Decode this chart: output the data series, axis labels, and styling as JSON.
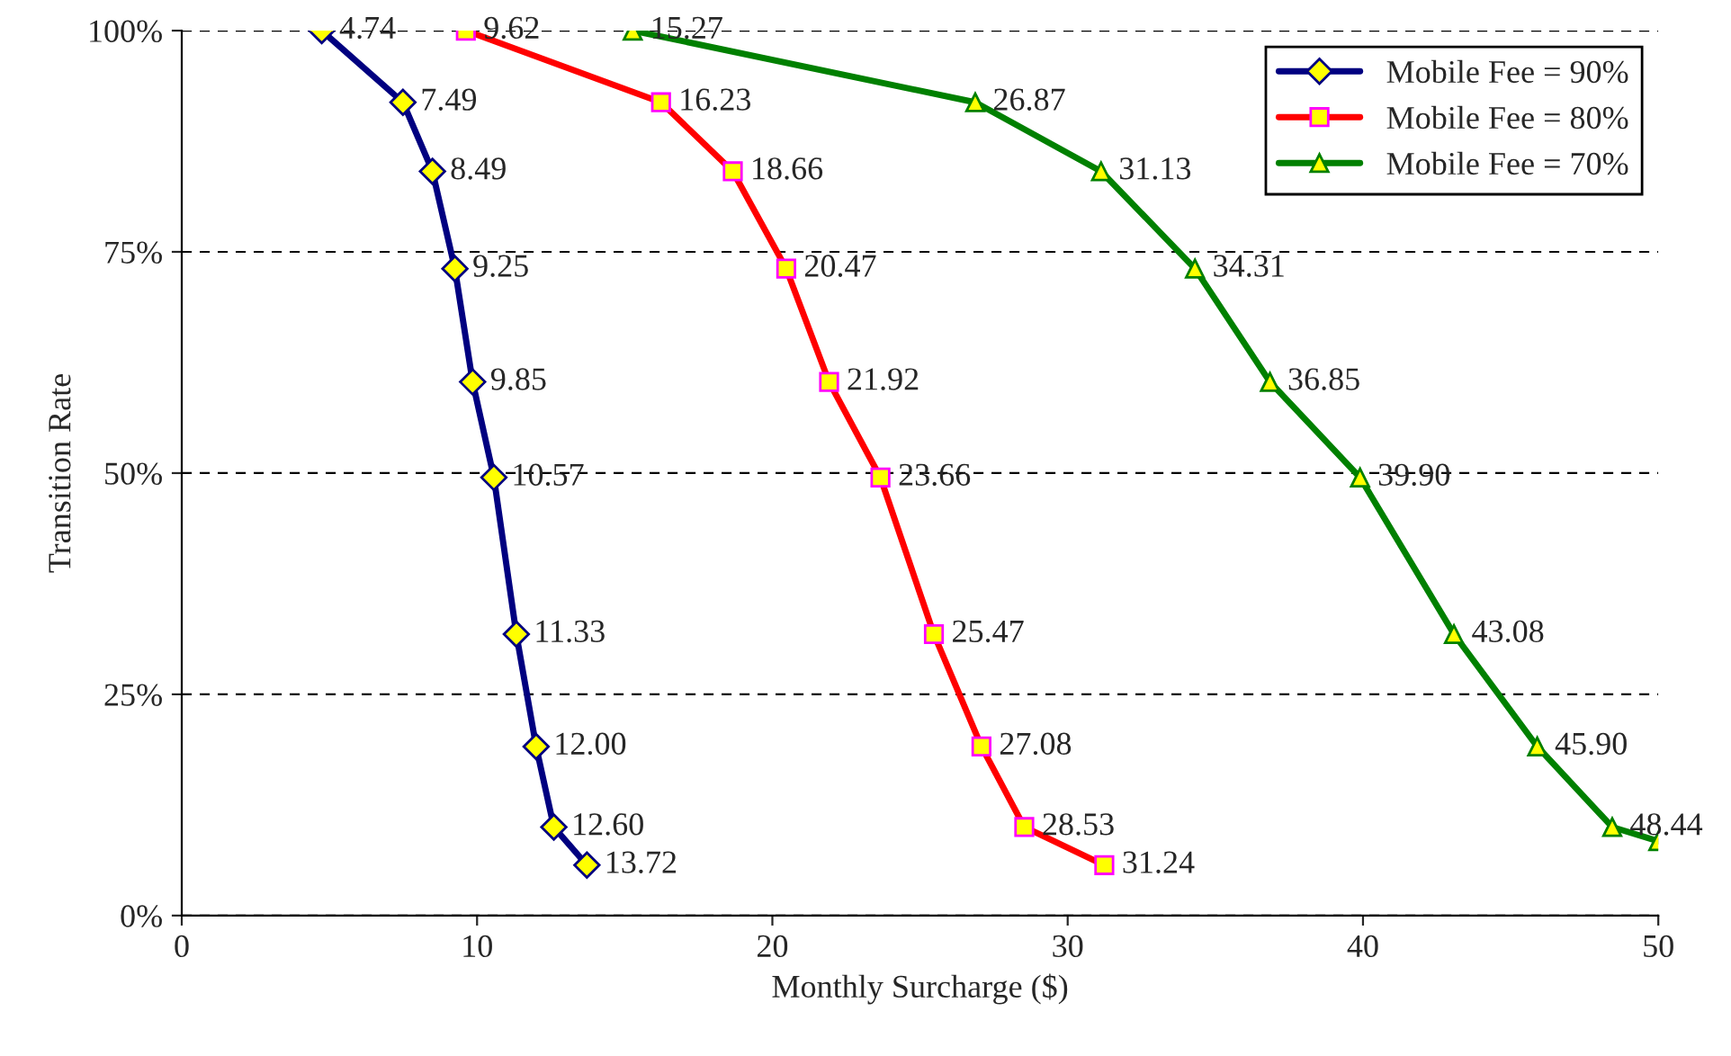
{
  "chart_data": {
    "type": "line",
    "xlabel": "Monthly Surcharge ($)",
    "ylabel": "Transition Rate",
    "xlim": [
      0,
      50
    ],
    "xticks": [
      0,
      10,
      20,
      30,
      40,
      50
    ],
    "ylim": [
      0,
      100
    ],
    "yticks": [
      {
        "value": 0,
        "label": "0%"
      },
      {
        "value": 25,
        "label": "25%"
      },
      {
        "value": 50,
        "label": "50%"
      },
      {
        "value": 75,
        "label": "75%"
      },
      {
        "value": 100,
        "label": "100%"
      }
    ],
    "grid": "y",
    "legend": "top right",
    "series": [
      {
        "name": "Mobile Fee = 90%",
        "color": "#000080",
        "marker": "diamond",
        "x": [
          4.74,
          7.49,
          8.49,
          9.25,
          9.85,
          10.57,
          11.33,
          12.0,
          12.6,
          13.72
        ],
        "values": [
          100,
          91.9,
          84.1,
          73.1,
          60.3,
          49.5,
          31.8,
          19.1,
          10.0,
          5.7
        ]
      },
      {
        "name": "Mobile Fee = 80%",
        "color": "#ff0000",
        "marker": "square",
        "x": [
          9.62,
          16.23,
          18.66,
          20.47,
          21.92,
          23.66,
          25.47,
          27.08,
          28.53,
          31.24
        ],
        "values": [
          100,
          91.9,
          84.1,
          73.1,
          60.3,
          49.5,
          31.8,
          19.1,
          10.0,
          5.7
        ]
      },
      {
        "name": "Mobile Fee = 70%",
        "color": "#008000",
        "marker": "triangle",
        "x": [
          15.27,
          26.87,
          31.13,
          34.31,
          36.85,
          39.9,
          43.08,
          45.9,
          48.44,
          50
        ],
        "values": [
          100,
          91.9,
          84.1,
          73.1,
          60.3,
          49.5,
          31.8,
          19.1,
          10.0,
          8.4
        ]
      }
    ],
    "annotations": [
      {
        "text": "4.74",
        "x": 4.74,
        "y": 100
      },
      {
        "text": "7.49",
        "x": 7.49,
        "y": 91.9
      },
      {
        "text": "8.49",
        "x": 8.49,
        "y": 84.1
      },
      {
        "text": "9.25",
        "x": 9.25,
        "y": 73.1
      },
      {
        "text": "9.85",
        "x": 9.85,
        "y": 60.3
      },
      {
        "text": "10.57",
        "x": 10.57,
        "y": 49.5
      },
      {
        "text": "11.33",
        "x": 11.33,
        "y": 31.8
      },
      {
        "text": "12.00",
        "x": 12.0,
        "y": 19.1
      },
      {
        "text": "12.60",
        "x": 12.6,
        "y": 10.0
      },
      {
        "text": "13.72",
        "x": 13.72,
        "y": 5.7
      },
      {
        "text": "9.62",
        "x": 9.62,
        "y": 100
      },
      {
        "text": "16.23",
        "x": 16.23,
        "y": 91.9
      },
      {
        "text": "18.66",
        "x": 18.66,
        "y": 84.1
      },
      {
        "text": "20.47",
        "x": 20.47,
        "y": 73.1
      },
      {
        "text": "21.92",
        "x": 21.92,
        "y": 60.3
      },
      {
        "text": "23.66",
        "x": 23.66,
        "y": 49.5
      },
      {
        "text": "25.47",
        "x": 25.47,
        "y": 31.8
      },
      {
        "text": "27.08",
        "x": 27.08,
        "y": 19.1
      },
      {
        "text": "28.53",
        "x": 28.53,
        "y": 10.0
      },
      {
        "text": "31.24",
        "x": 31.24,
        "y": 5.7
      },
      {
        "text": "15.27",
        "x": 15.27,
        "y": 100
      },
      {
        "text": "26.87",
        "x": 26.87,
        "y": 91.9
      },
      {
        "text": "31.13",
        "x": 31.13,
        "y": 84.1
      },
      {
        "text": "34.31",
        "x": 34.31,
        "y": 73.1
      },
      {
        "text": "36.85",
        "x": 36.85,
        "y": 60.3
      },
      {
        "text": "39.90",
        "x": 39.9,
        "y": 49.5
      },
      {
        "text": "43.08",
        "x": 43.08,
        "y": 31.8
      },
      {
        "text": "45.90",
        "x": 45.9,
        "y": 19.1
      },
      {
        "text": "48.44",
        "x": 48.44,
        "y": 10.0
      }
    ]
  }
}
